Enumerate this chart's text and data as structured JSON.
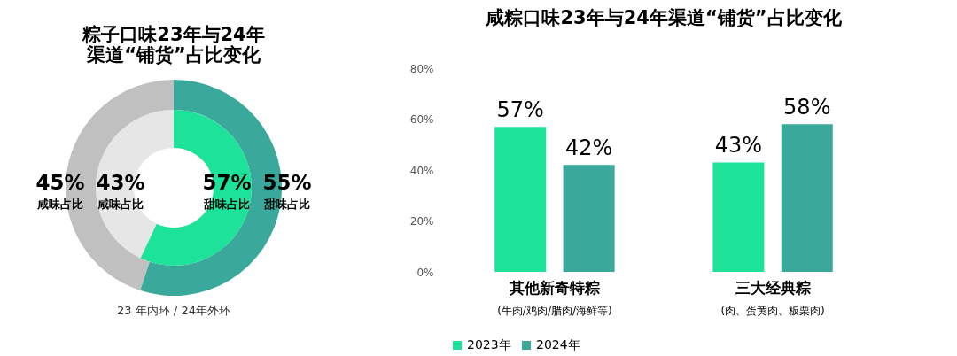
{
  "chart_data": [
    {
      "type": "donut",
      "title": "粽子口味23年与24年渠道“铺货”占比变化",
      "categories": [
        "咸味占比",
        "甜味占比"
      ],
      "series": [
        {
          "values": [
            43,
            57
          ],
          "colors": [
            "#e6e6e6",
            "#1de39a"
          ],
          "value_labels": [
            "43%",
            "57%"
          ]
        },
        {
          "values": [
            45,
            55
          ],
          "colors": [
            "#c0c0c0",
            "#3aa89a"
          ],
          "value_labels": [
            "45%",
            "55%"
          ]
        }
      ],
      "annotations": [
        "23 年内环 / 24年外环"
      ],
      "legend": false
    },
    {
      "type": "bar",
      "title": "咸粽口味23年与24年渠道“铺货”占比变化",
      "categories": [
        "其他新奇特粽",
        "三大经典粽"
      ],
      "series": [
        {
          "name": "2023年",
          "color": "#1de39a",
          "values": [
            57,
            43
          ],
          "value_labels": [
            "57%",
            "43%"
          ]
        },
        {
          "name": "2024年",
          "color": "#3aa89a",
          "values": [
            42,
            58
          ],
          "value_labels": [
            "42%",
            "58%"
          ]
        }
      ],
      "ylim": [
        0,
        80
      ],
      "yticks": [
        {
          "value": 0,
          "label": "0%"
        },
        {
          "value": 20,
          "label": "20%"
        },
        {
          "value": 40,
          "label": "40%"
        },
        {
          "value": 60,
          "label": "60%"
        },
        {
          "value": 80,
          "label": "80%"
        }
      ],
      "annotations": [
        "(牛肉/鸡肉/腊肉/海鲜等)",
        "(肉、蛋黄肉、板栗肉)"
      ],
      "grid": false,
      "legend": "bottom"
    }
  ]
}
